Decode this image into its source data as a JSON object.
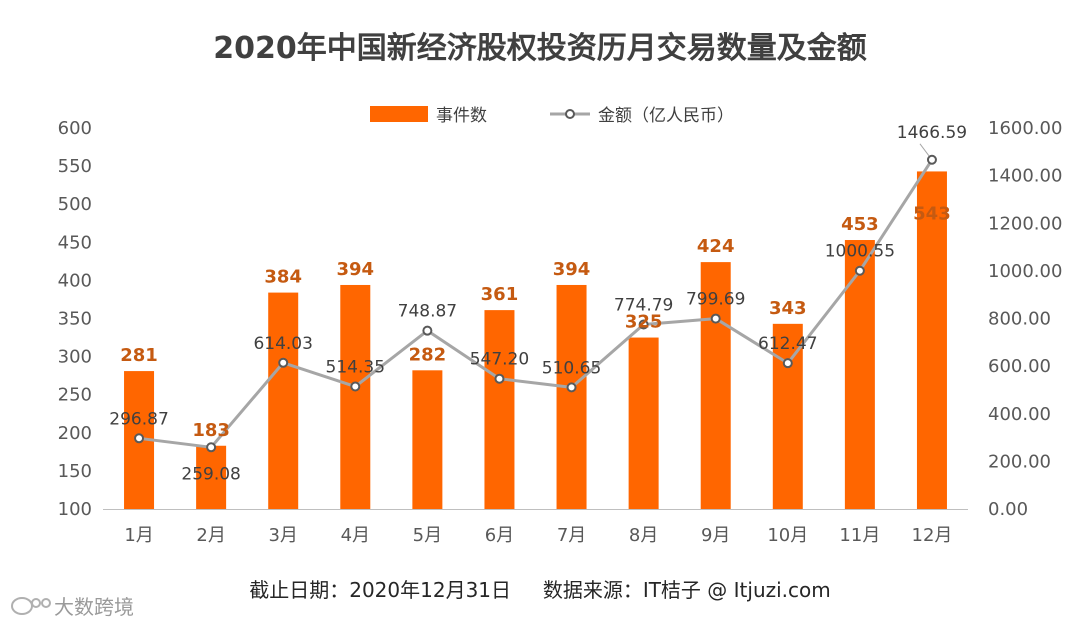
{
  "chart_data": {
    "type": "bar",
    "title": "2020年中国新经济股权投资历月交易数量及金额",
    "categories": [
      "1月",
      "2月",
      "3月",
      "4月",
      "5月",
      "6月",
      "7月",
      "8月",
      "9月",
      "10月",
      "11月",
      "12月"
    ],
    "series": [
      {
        "name": "事件数",
        "kind": "bar",
        "axis": "left",
        "color": "#ff6600",
        "values": [
          281,
          183,
          384,
          394,
          282,
          361,
          394,
          325,
          424,
          343,
          453,
          543
        ],
        "labels": [
          "281",
          "183",
          "384",
          "394",
          "282",
          "361",
          "394",
          "325",
          "424",
          "343",
          "453",
          "543"
        ]
      },
      {
        "name": "金额（亿人民币）",
        "kind": "line",
        "axis": "right",
        "color": "#a6a6a6",
        "values": [
          296.87,
          259.08,
          614.03,
          514.35,
          748.87,
          547.2,
          510.65,
          774.79,
          799.69,
          612.47,
          1000.55,
          1466.59
        ],
        "labels": [
          "296.87",
          "259.08",
          "614.03",
          "514.35",
          "748.87",
          "547.20",
          "510.65",
          "774.79",
          "799.69",
          "612.47",
          "1000.55",
          "1466.59"
        ]
      }
    ],
    "y_left": {
      "min": 100,
      "max": 600,
      "step": 50,
      "ticks": [
        "100",
        "150",
        "200",
        "250",
        "300",
        "350",
        "400",
        "450",
        "500",
        "550",
        "600"
      ]
    },
    "y_right": {
      "min": 0,
      "max": 1600,
      "step": 200,
      "ticks": [
        "0.00",
        "200.00",
        "400.00",
        "600.00",
        "800.00",
        "1000.00",
        "1200.00",
        "1400.00",
        "1600.00"
      ]
    },
    "legend_position": "top-center",
    "grid": false
  },
  "footer": "截止日期：2020年12月31日     数据来源：IT桔子 @ Itjuzi.com",
  "watermark": "大数跨境"
}
